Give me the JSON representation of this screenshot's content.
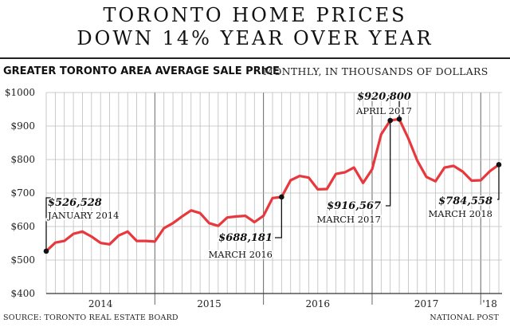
{
  "header": {
    "title_line1": "TORONTO HOME PRICES",
    "title_line2": "DOWN 14% YEAR OVER YEAR",
    "subtitle_bold": "GREATER TORONTO AREA AVERAGE SALE PRICE",
    "subtitle_light": "MONTHLY, IN THOUSANDS OF DOLLARS"
  },
  "footer": {
    "source": "SOURCE: TORONTO REAL ESTATE BOARD",
    "credit": "NATIONAL POST"
  },
  "colors": {
    "line": "#e8383d",
    "grid": "#bdbdbd",
    "axis": "#333333",
    "text": "#222222"
  },
  "chart_data": {
    "type": "line",
    "title": "GREATER TORONTO AREA AVERAGE SALE PRICE",
    "subtitle": "MONTHLY, IN THOUSANDS OF DOLLARS",
    "ylim": [
      400,
      1000
    ],
    "yticks": [
      400,
      500,
      600,
      700,
      800,
      900,
      1000
    ],
    "ytick_labels": [
      "$400",
      "$500",
      "$600",
      "$700",
      "$800",
      "$900",
      "$1000"
    ],
    "x_start": "2014-01",
    "x_end": "2018-03",
    "year_labels": [
      {
        "label": "2014",
        "center": "2014-07"
      },
      {
        "label": "2015",
        "center": "2015-07"
      },
      {
        "label": "2016",
        "center": "2016-07"
      },
      {
        "label": "2017",
        "center": "2017-07"
      },
      {
        "label": "'18",
        "center": "2018-02"
      }
    ],
    "grid": true,
    "series": [
      {
        "x": [
          "2014-01",
          "2014-02",
          "2014-03",
          "2014-04",
          "2014-05",
          "2014-06",
          "2014-07",
          "2014-08",
          "2014-09",
          "2014-10",
          "2014-11",
          "2014-12",
          "2015-01",
          "2015-02",
          "2015-03",
          "2015-04",
          "2015-05",
          "2015-06",
          "2015-07",
          "2015-08",
          "2015-09",
          "2015-10",
          "2015-11",
          "2015-12",
          "2016-01",
          "2016-02",
          "2016-03",
          "2016-04",
          "2016-05",
          "2016-06",
          "2016-07",
          "2016-08",
          "2016-09",
          "2016-10",
          "2016-11",
          "2016-12",
          "2017-01",
          "2017-02",
          "2017-03",
          "2017-04",
          "2017-05",
          "2017-06",
          "2017-07",
          "2017-08",
          "2017-09",
          "2017-10",
          "2017-11",
          "2017-12",
          "2018-01",
          "2018-02",
          "2018-03"
        ],
        "values": [
          526.5,
          552,
          557,
          578,
          585,
          570,
          551,
          547,
          573,
          585,
          557,
          557,
          555,
          595,
          610,
          630,
          648,
          640,
          610,
          602,
          627,
          630,
          632,
          613,
          632,
          685,
          688.2,
          738,
          751,
          746,
          711,
          712,
          757,
          762,
          776,
          730,
          771,
          875,
          916.6,
          920.8,
          863,
          796,
          748,
          735,
          776,
          781,
          764,
          737,
          738,
          765,
          784.6
        ]
      }
    ],
    "annotations": [
      {
        "value": "$526,528",
        "label": "JANUARY 2014",
        "x": "2014-01",
        "y": 526.5
      },
      {
        "value": "$688,181",
        "label": "MARCH 2016",
        "x": "2016-03",
        "y": 688.2
      },
      {
        "value": "$920,800",
        "label": "APRIL 2017",
        "x": "2017-04",
        "y": 920.8
      },
      {
        "value": "$916,567",
        "label": "MARCH 2017",
        "x": "2017-03",
        "y": 916.6
      },
      {
        "value": "$784,558",
        "label": "MARCH 2018",
        "x": "2018-03",
        "y": 784.6
      }
    ]
  }
}
